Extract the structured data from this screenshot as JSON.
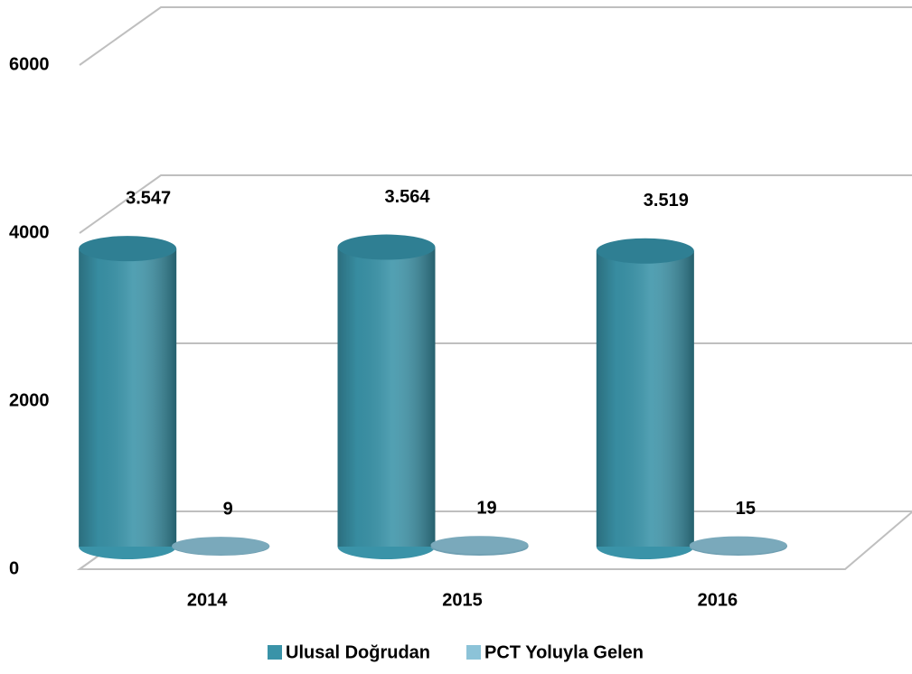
{
  "chart_data": {
    "type": "bar3d",
    "categories": [
      "2014",
      "2015",
      "2016"
    ],
    "series": [
      {
        "name": "Ulusal Doğrudan",
        "color": "#3a93a8",
        "values": [
          3547,
          3564,
          3519
        ],
        "value_labels": [
          "3.547",
          "3.564",
          "3.519"
        ]
      },
      {
        "name": "PCT Yoluyla Gelen",
        "color": "#8cc3d8",
        "values": [
          9,
          19,
          15
        ]
      }
    ],
    "ylim": [
      0,
      6000
    ],
    "yticks": [
      0,
      2000,
      4000,
      6000
    ],
    "grid": true,
    "legend": "bottom"
  }
}
